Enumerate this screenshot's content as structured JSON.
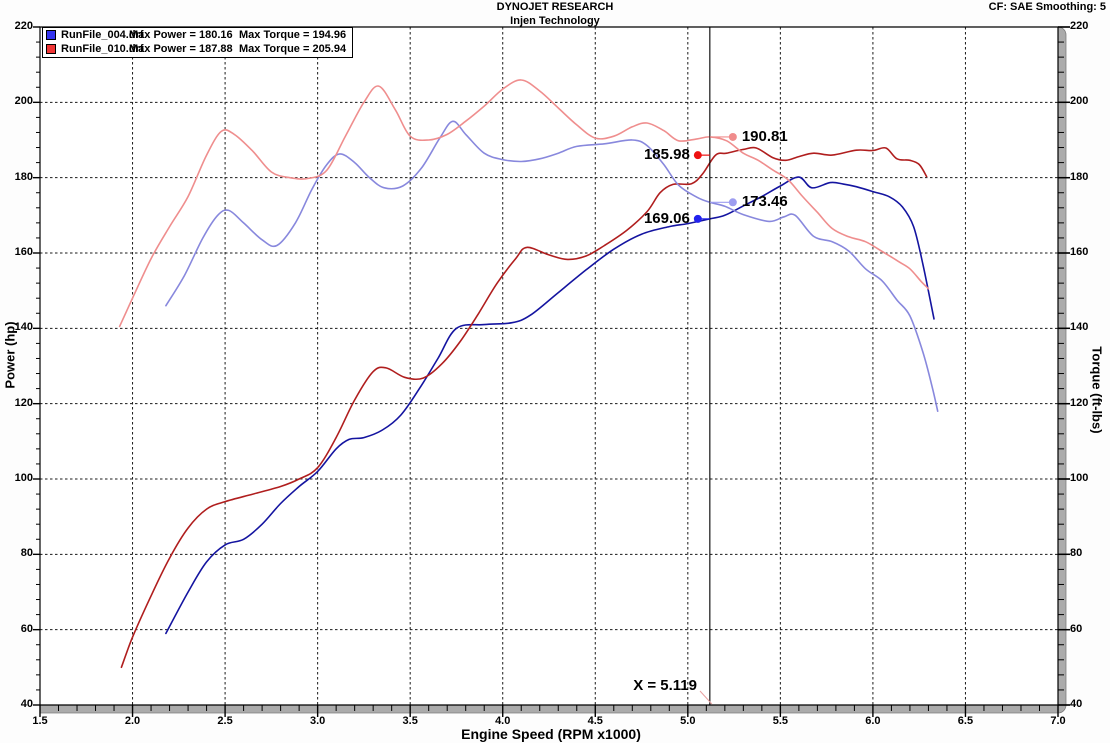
{
  "header": {
    "title": "DYNOJET RESEARCH",
    "subtitle": "Injen Technology",
    "cf_smoothing": "CF: SAE  Smoothing: 5"
  },
  "legend": {
    "rows": [
      {
        "file": "RunFile_004.drf",
        "power": "Max Power = 180.16",
        "torque": "Max Torque = 194.96",
        "swatch_color": "#3535f0"
      },
      {
        "file": "RunFile_010.drf",
        "power": "Max Power = 187.88",
        "torque": "Max Torque = 205.94",
        "swatch_color": "#f03535"
      }
    ]
  },
  "axes": {
    "x": {
      "label": "Engine Speed (RPM x1000)",
      "min": 1.5,
      "max": 7.0,
      "major_step": 0.5,
      "minor_step": 0.1,
      "tick_labels": [
        "1.5",
        "2.0",
        "2.5",
        "3.0",
        "3.5",
        "4.0",
        "4.5",
        "5.0",
        "5.5",
        "6.0",
        "6.5",
        "7.0"
      ]
    },
    "y_left": {
      "label": "Power (hp)",
      "min": 40,
      "max": 220,
      "major_step": 20,
      "minor_step": 4,
      "tick_labels": [
        "220",
        "200",
        "180",
        "160",
        "140",
        "120",
        "100",
        "80",
        "60",
        "40"
      ]
    },
    "y_right": {
      "label": "Torque (ft-lbs)",
      "min": 40,
      "max": 220,
      "major_step": 20,
      "minor_step": 4,
      "tick_labels": [
        "220",
        "200",
        "180",
        "160",
        "140",
        "120",
        "100",
        "80",
        "60",
        "40"
      ]
    }
  },
  "cursor": {
    "x": 5.119,
    "label": "X = 5.119",
    "line_color": "#000000",
    "values": [
      {
        "text": "190.81",
        "y": 190.81,
        "side": "right",
        "marker_color": "#f08c8c"
      },
      {
        "text": "185.98",
        "y": 185.98,
        "side": "left",
        "marker_color": "#ee1111"
      },
      {
        "text": "173.46",
        "y": 173.46,
        "side": "right",
        "marker_color": "#9d9df0"
      },
      {
        "text": "169.06",
        "y": 169.06,
        "side": "left",
        "marker_color": "#2222ee"
      }
    ]
  },
  "chart_data": {
    "type": "line",
    "title": "DYNOJET RESEARCH — Injen Technology",
    "xlabel": "Engine Speed (RPM x1000)",
    "ylabel_left": "Power (hp)",
    "ylabel_right": "Torque (ft-lbs)",
    "xlim": [
      1.5,
      7.0
    ],
    "ylim": [
      40,
      220
    ],
    "grid": true,
    "legend_position": "top-left",
    "series": [
      {
        "name": "RunFile_004.drf Power (hp)",
        "max": 180.16,
        "color": "#1414a0",
        "points": [
          [
            2.18,
            59
          ],
          [
            2.3,
            70
          ],
          [
            2.4,
            78
          ],
          [
            2.5,
            82.5
          ],
          [
            2.6,
            84
          ],
          [
            2.7,
            88
          ],
          [
            2.8,
            93.5
          ],
          [
            2.9,
            98
          ],
          [
            3.0,
            102
          ],
          [
            3.1,
            108
          ],
          [
            3.17,
            110.5
          ],
          [
            3.25,
            111
          ],
          [
            3.35,
            113
          ],
          [
            3.45,
            117
          ],
          [
            3.55,
            124
          ],
          [
            3.65,
            132
          ],
          [
            3.75,
            140
          ],
          [
            3.9,
            141
          ],
          [
            4.05,
            141.5
          ],
          [
            4.15,
            143.5
          ],
          [
            4.3,
            149.5
          ],
          [
            4.45,
            155.5
          ],
          [
            4.6,
            161
          ],
          [
            4.75,
            165
          ],
          [
            4.9,
            167
          ],
          [
            5.0,
            167.8
          ],
          [
            5.119,
            169.06
          ],
          [
            5.2,
            170
          ],
          [
            5.3,
            172.5
          ],
          [
            5.4,
            175
          ],
          [
            5.5,
            177.8
          ],
          [
            5.6,
            180.16
          ],
          [
            5.67,
            177.3
          ],
          [
            5.77,
            178.7
          ],
          [
            5.84,
            178.3
          ],
          [
            5.91,
            177.6
          ],
          [
            6.0,
            176.3
          ],
          [
            6.09,
            174.9
          ],
          [
            6.16,
            172.2
          ],
          [
            6.22,
            167
          ],
          [
            6.27,
            157
          ],
          [
            6.33,
            142.5
          ]
        ]
      },
      {
        "name": "RunFile_010.drf Power (hp)",
        "max": 187.88,
        "color": "#b01e1e",
        "points": [
          [
            1.94,
            50
          ],
          [
            2.0,
            58
          ],
          [
            2.1,
            69
          ],
          [
            2.2,
            79
          ],
          [
            2.3,
            87
          ],
          [
            2.4,
            92
          ],
          [
            2.5,
            94
          ],
          [
            2.65,
            96
          ],
          [
            2.8,
            98
          ],
          [
            2.9,
            100
          ],
          [
            3.0,
            103
          ],
          [
            3.1,
            111
          ],
          [
            3.2,
            121
          ],
          [
            3.3,
            128.5
          ],
          [
            3.37,
            129.5
          ],
          [
            3.47,
            127
          ],
          [
            3.57,
            126.8
          ],
          [
            3.67,
            130.5
          ],
          [
            3.77,
            136.5
          ],
          [
            3.87,
            144
          ],
          [
            3.97,
            152
          ],
          [
            4.07,
            158.5
          ],
          [
            4.13,
            161.5
          ],
          [
            4.25,
            159.5
          ],
          [
            4.35,
            158.3
          ],
          [
            4.45,
            159.2
          ],
          [
            4.55,
            162
          ],
          [
            4.67,
            166
          ],
          [
            4.78,
            171
          ],
          [
            4.85,
            176
          ],
          [
            4.92,
            178.2
          ],
          [
            5.02,
            178.4
          ],
          [
            5.08,
            181
          ],
          [
            5.15,
            186
          ],
          [
            5.21,
            186.5
          ],
          [
            5.3,
            187.5
          ],
          [
            5.37,
            187.88
          ],
          [
            5.46,
            185.3
          ],
          [
            5.53,
            184.6
          ],
          [
            5.6,
            185.6
          ],
          [
            5.68,
            186.5
          ],
          [
            5.78,
            186
          ],
          [
            5.91,
            187.3
          ],
          [
            6.0,
            187.2
          ],
          [
            6.07,
            187.88
          ],
          [
            6.13,
            185
          ],
          [
            6.2,
            184.6
          ],
          [
            6.25,
            183.5
          ],
          [
            6.29,
            180.3
          ]
        ]
      },
      {
        "name": "RunFile_004.drf Torque (ft-lbs)",
        "max": 194.96,
        "color": "#8888dd",
        "points": [
          [
            2.18,
            146
          ],
          [
            2.28,
            154
          ],
          [
            2.38,
            164
          ],
          [
            2.46,
            170
          ],
          [
            2.52,
            171.3
          ],
          [
            2.6,
            168
          ],
          [
            2.7,
            163.5
          ],
          [
            2.78,
            162
          ],
          [
            2.88,
            168
          ],
          [
            2.97,
            177
          ],
          [
            3.05,
            183.5
          ],
          [
            3.12,
            186.3
          ],
          [
            3.2,
            184
          ],
          [
            3.28,
            180
          ],
          [
            3.36,
            177.3
          ],
          [
            3.46,
            177.8
          ],
          [
            3.56,
            182.5
          ],
          [
            3.66,
            190.5
          ],
          [
            3.73,
            194.96
          ],
          [
            3.8,
            191.5
          ],
          [
            3.9,
            186.5
          ],
          [
            4.0,
            184.8
          ],
          [
            4.1,
            184.3
          ],
          [
            4.2,
            185
          ],
          [
            4.3,
            186.5
          ],
          [
            4.4,
            188.3
          ],
          [
            4.55,
            189
          ],
          [
            4.7,
            190
          ],
          [
            4.78,
            188.5
          ],
          [
            4.87,
            183.5
          ],
          [
            4.95,
            178
          ],
          [
            5.05,
            174.8
          ],
          [
            5.119,
            173.46
          ],
          [
            5.2,
            172.4
          ],
          [
            5.3,
            170.2
          ],
          [
            5.44,
            168.4
          ],
          [
            5.52,
            169.6
          ],
          [
            5.58,
            170
          ],
          [
            5.68,
            164.4
          ],
          [
            5.78,
            163
          ],
          [
            5.87,
            160.5
          ],
          [
            5.96,
            155.8
          ],
          [
            6.05,
            152.6
          ],
          [
            6.13,
            147.5
          ],
          [
            6.2,
            143.3
          ],
          [
            6.27,
            133.7
          ],
          [
            6.32,
            124.5
          ],
          [
            6.35,
            118
          ]
        ]
      },
      {
        "name": "RunFile_010.drf Torque (ft-lbs)",
        "max": 205.94,
        "color": "#ef8e8e",
        "points": [
          [
            1.93,
            140.5
          ],
          [
            2.0,
            148
          ],
          [
            2.1,
            158.5
          ],
          [
            2.2,
            167
          ],
          [
            2.3,
            175
          ],
          [
            2.4,
            186
          ],
          [
            2.48,
            192.3
          ],
          [
            2.55,
            191.5
          ],
          [
            2.65,
            187
          ],
          [
            2.75,
            181.5
          ],
          [
            2.85,
            180
          ],
          [
            2.95,
            179.8
          ],
          [
            3.05,
            182
          ],
          [
            3.15,
            191
          ],
          [
            3.25,
            200
          ],
          [
            3.33,
            204.3
          ],
          [
            3.42,
            198
          ],
          [
            3.5,
            191
          ],
          [
            3.6,
            190
          ],
          [
            3.7,
            191.5
          ],
          [
            3.8,
            195
          ],
          [
            3.9,
            199
          ],
          [
            4.0,
            203.5
          ],
          [
            4.1,
            205.94
          ],
          [
            4.2,
            203
          ],
          [
            4.3,
            198.5
          ],
          [
            4.4,
            194
          ],
          [
            4.5,
            190.5
          ],
          [
            4.6,
            191
          ],
          [
            4.7,
            193.5
          ],
          [
            4.78,
            194.5
          ],
          [
            4.87,
            192.5
          ],
          [
            4.95,
            189.8
          ],
          [
            5.05,
            190.3
          ],
          [
            5.119,
            190.81
          ],
          [
            5.21,
            189.8
          ],
          [
            5.3,
            186.5
          ],
          [
            5.38,
            184.6
          ],
          [
            5.46,
            182
          ],
          [
            5.54,
            179.5
          ],
          [
            5.62,
            175
          ],
          [
            5.7,
            170.8
          ],
          [
            5.78,
            166.5
          ],
          [
            5.87,
            164.3
          ],
          [
            5.96,
            163
          ],
          [
            6.05,
            160.4
          ],
          [
            6.14,
            157.7
          ],
          [
            6.2,
            155.8
          ],
          [
            6.26,
            152.5
          ],
          [
            6.3,
            150.5
          ]
        ]
      }
    ]
  }
}
